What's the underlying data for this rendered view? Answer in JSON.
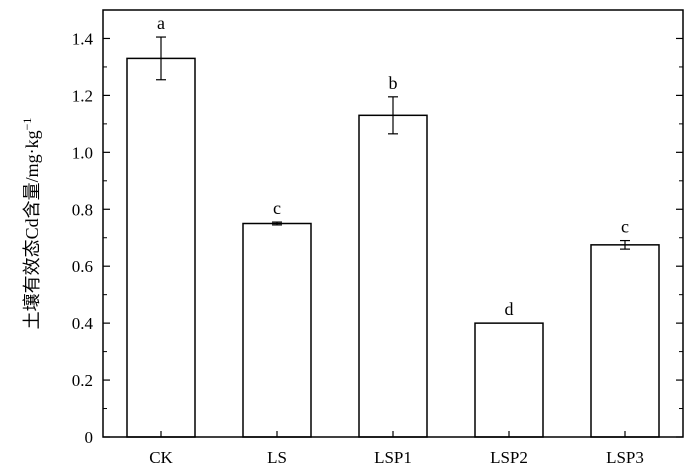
{
  "chart_data": {
    "type": "bar",
    "categories": [
      "CK",
      "LS",
      "LSP1",
      "LSP2",
      "LSP3"
    ],
    "values": [
      1.33,
      0.75,
      1.13,
      0.4,
      0.675
    ],
    "errors": [
      0.075,
      0.005,
      0.065,
      0.0,
      0.015
    ],
    "significance": [
      "a",
      "c",
      "b",
      "d",
      "c"
    ],
    "ylabel": "土壤有效态Cd含量/mg·kg",
    "ylabel_superscript": "−1",
    "xlabel": "",
    "ylim": [
      0,
      1.5
    ],
    "yticks": [
      "0",
      "0.2",
      "0.4",
      "0.6",
      "0.8",
      "1.0",
      "1.2",
      "1.4"
    ],
    "ytick_values": [
      0,
      0.2,
      0.4,
      0.6,
      0.8,
      1.0,
      1.2,
      1.4
    ],
    "bar_fill": "#ffffff",
    "bar_stroke": "#000000",
    "grid": false,
    "legend": "none"
  }
}
